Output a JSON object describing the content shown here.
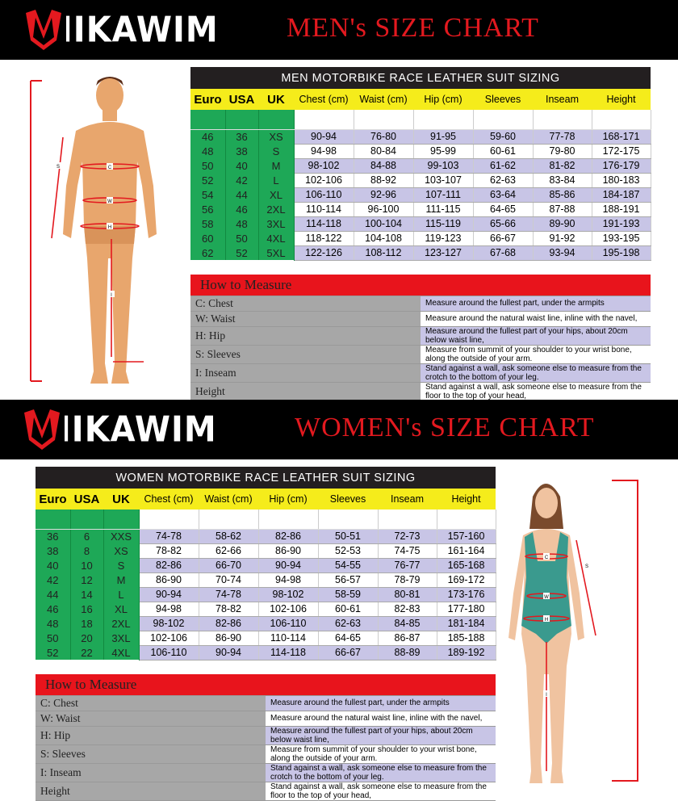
{
  "brand": "MIKAWIM",
  "colors": {
    "red": "#e3191f",
    "yellow": "#f5ec1b",
    "green": "#1ea857",
    "lavender": "#c8c5e6",
    "black": "#000000"
  },
  "men": {
    "banner_title": "MEN's SIZE CHART",
    "table_title": "MEN MOTORBIKE RACE LEATHER SUIT SIZING",
    "headers": [
      "Euro",
      "USA",
      "UK",
      "Chest (cm)",
      "Waist (cm)",
      "Hip (cm)",
      "Sleeves",
      "Inseam",
      "Height"
    ],
    "rows": [
      [
        "46",
        "36",
        "XS",
        "90-94",
        "76-80",
        "91-95",
        "59-60",
        "77-78",
        "168-171"
      ],
      [
        "48",
        "38",
        "S",
        "94-98",
        "80-84",
        "95-99",
        "60-61",
        "79-80",
        "172-175"
      ],
      [
        "50",
        "40",
        "M",
        "98-102",
        "84-88",
        "99-103",
        "61-62",
        "81-82",
        "176-179"
      ],
      [
        "52",
        "42",
        "L",
        "102-106",
        "88-92",
        "103-107",
        "62-63",
        "83-84",
        "180-183"
      ],
      [
        "54",
        "44",
        "XL",
        "106-110",
        "92-96",
        "107-111",
        "63-64",
        "85-86",
        "184-187"
      ],
      [
        "56",
        "46",
        "2XL",
        "110-114",
        "96-100",
        "111-115",
        "64-65",
        "87-88",
        "188-191"
      ],
      [
        "58",
        "48",
        "3XL",
        "114-118",
        "100-104",
        "115-119",
        "65-66",
        "89-90",
        "191-193"
      ],
      [
        "60",
        "50",
        "4XL",
        "118-122",
        "104-108",
        "119-123",
        "66-67",
        "91-92",
        "193-195"
      ],
      [
        "62",
        "52",
        "5XL",
        "122-126",
        "108-112",
        "123-127",
        "67-68",
        "93-94",
        "195-198"
      ]
    ],
    "figure_labels": [
      "C",
      "W",
      "H",
      "S",
      "I"
    ]
  },
  "women": {
    "banner_title": "WOMEN's SIZE CHART",
    "table_title": "WOMEN MOTORBIKE RACE LEATHER SUIT SIZING",
    "headers": [
      "Euro",
      "USA",
      "UK",
      "Chest (cm)",
      "Waist (cm)",
      "Hip (cm)",
      "Sleeves",
      "Inseam",
      "Height"
    ],
    "rows": [
      [
        "36",
        "6",
        "XXS",
        "74-78",
        "58-62",
        "82-86",
        "50-51",
        "72-73",
        "157-160"
      ],
      [
        "38",
        "8",
        "XS",
        "78-82",
        "62-66",
        "86-90",
        "52-53",
        "74-75",
        "161-164"
      ],
      [
        "40",
        "10",
        "S",
        "82-86",
        "66-70",
        "90-94",
        "54-55",
        "76-77",
        "165-168"
      ],
      [
        "42",
        "12",
        "M",
        "86-90",
        "70-74",
        "94-98",
        "56-57",
        "78-79",
        "169-172"
      ],
      [
        "44",
        "14",
        "L",
        "90-94",
        "74-78",
        "98-102",
        "58-59",
        "80-81",
        "173-176"
      ],
      [
        "46",
        "16",
        "XL",
        "94-98",
        "78-82",
        "102-106",
        "60-61",
        "82-83",
        "177-180"
      ],
      [
        "48",
        "18",
        "2XL",
        "98-102",
        "82-86",
        "106-110",
        "62-63",
        "84-85",
        "181-184"
      ],
      [
        "50",
        "20",
        "3XL",
        "102-106",
        "86-90",
        "110-114",
        "64-65",
        "86-87",
        "185-188"
      ],
      [
        "52",
        "22",
        "4XL",
        "106-110",
        "90-94",
        "114-118",
        "66-67",
        "88-89",
        "189-192"
      ]
    ],
    "figure_labels": [
      "C",
      "W",
      "H",
      "S",
      "I"
    ]
  },
  "how_to_measure": {
    "title": "How to Measure",
    "items": [
      {
        "label": "C: Chest",
        "text": "Measure around the fullest part, under the armpits"
      },
      {
        "label": "W: Waist",
        "text": "Measure around the natural waist line, inline with the navel,"
      },
      {
        "label": "H: Hip",
        "text": "Measure around the fullest part of your hips, about 20cm below waist line,"
      },
      {
        "label": "S: Sleeves",
        "text": "Measure from summit of your shoulder to your wrist bone, along the outside of your arm."
      },
      {
        "label": "I: Inseam",
        "text": "Stand against a wall, ask someone else to measure from the crotch to the bottom of your leg."
      },
      {
        "label": "Height",
        "text": "Stand against a wall, ask someone else to measure from the floor to the top of your head,"
      }
    ]
  }
}
